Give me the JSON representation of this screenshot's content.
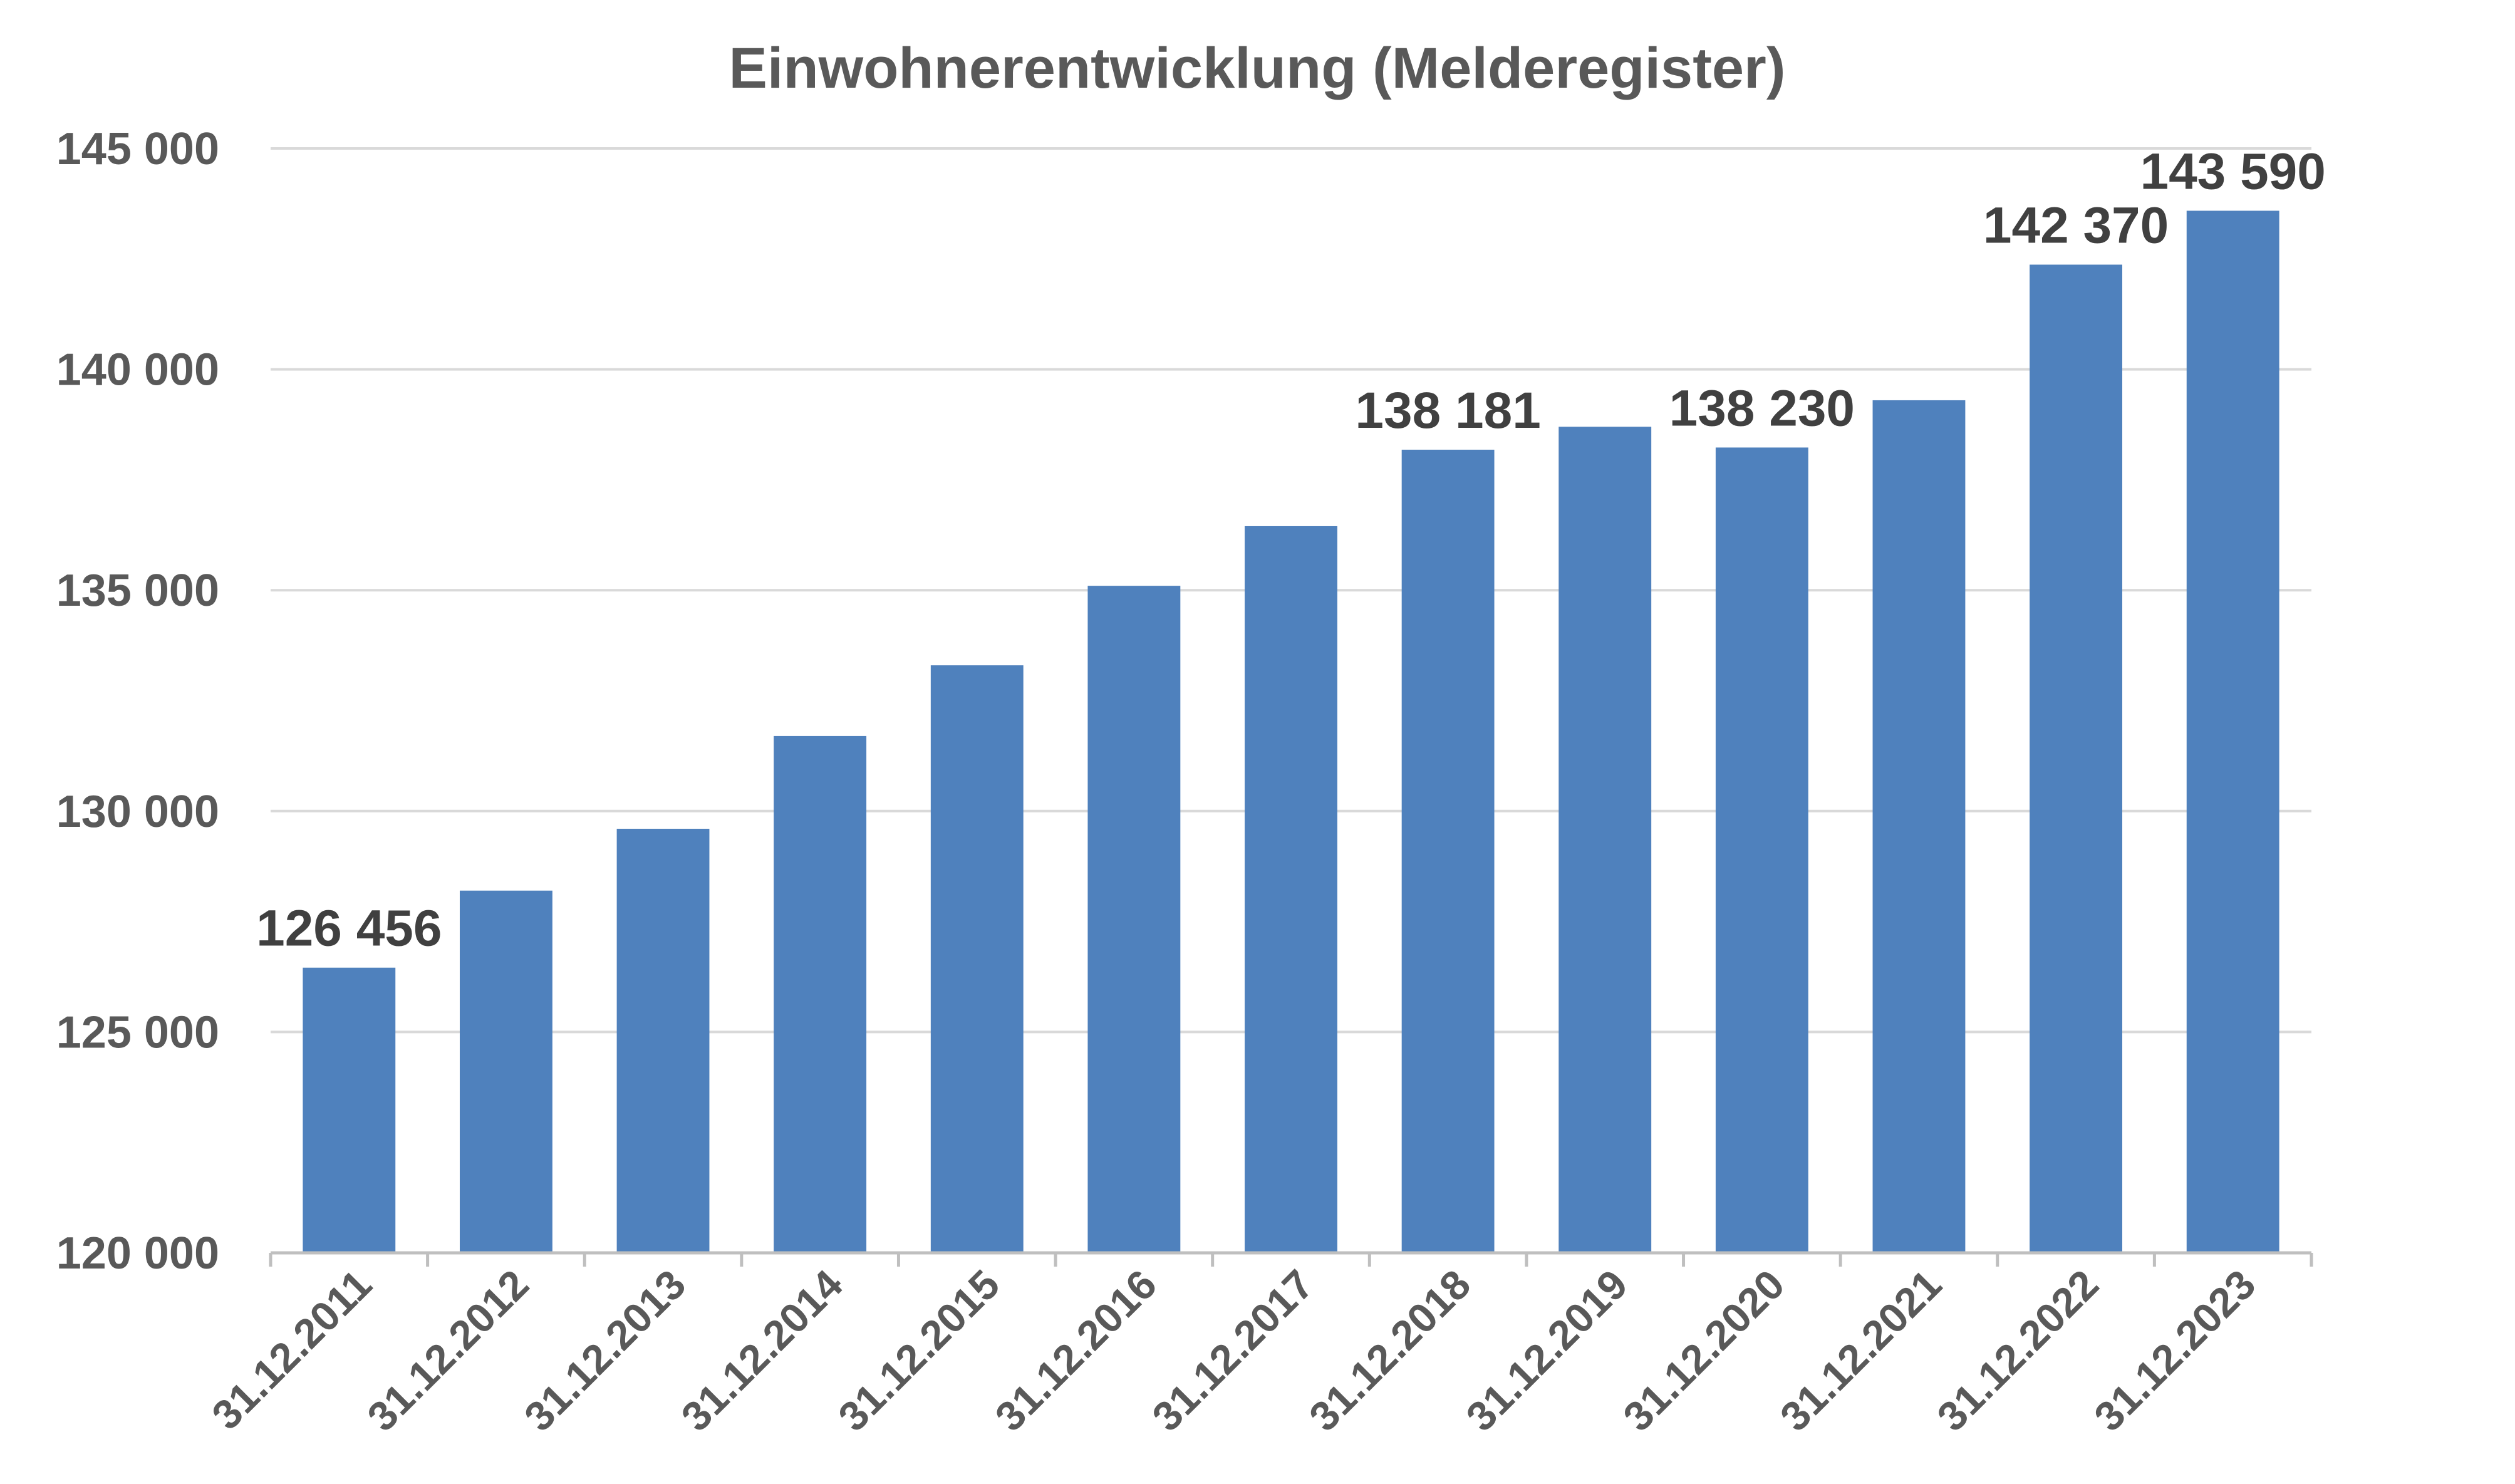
{
  "chart_data": {
    "type": "bar",
    "title": "Einwohnerentwicklung (Melderegister)",
    "xlabel": "",
    "ylabel": "",
    "categories": [
      "31.12.2011",
      "31.12.2012",
      "31.12.2013",
      "31.12.2014",
      "31.12.2015",
      "31.12.2016",
      "31.12.2017",
      "31.12.2018",
      "31.12.2019",
      "31.12.2020",
      "31.12.2021",
      "31.12.2022",
      "31.12.2023"
    ],
    "values": [
      126456,
      128200,
      129600,
      131700,
      133300,
      135100,
      136450,
      138181,
      138700,
      138230,
      139300,
      142370,
      143590
    ],
    "data_labels": [
      "126 456",
      null,
      null,
      null,
      null,
      null,
      null,
      "138 181",
      null,
      "138 230",
      null,
      "142 370",
      "143 590"
    ],
    "ylim": [
      120000,
      145000
    ],
    "yticks": [
      120000,
      125000,
      130000,
      135000,
      140000,
      145000
    ],
    "ytick_labels": [
      "120 000",
      "125 000",
      "130 000",
      "135 000",
      "140 000",
      "145 000"
    ],
    "grid": true,
    "legend": "none",
    "colors": {
      "bar": "#4F81BD",
      "grid": "#D9D9D9",
      "axis": "#BFBFBF",
      "text": "#595959",
      "label": "#404040"
    }
  }
}
